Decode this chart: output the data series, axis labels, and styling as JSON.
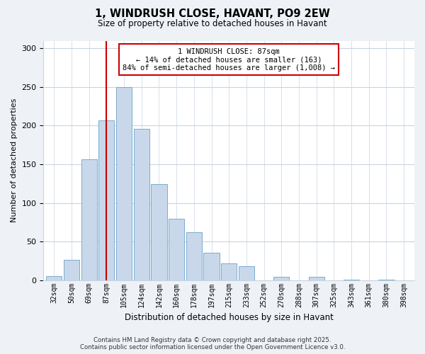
{
  "title": "1, WINDRUSH CLOSE, HAVANT, PO9 2EW",
  "subtitle": "Size of property relative to detached houses in Havant",
  "xlabel": "Distribution of detached houses by size in Havant",
  "ylabel": "Number of detached properties",
  "bin_labels": [
    "32sqm",
    "50sqm",
    "69sqm",
    "87sqm",
    "105sqm",
    "124sqm",
    "142sqm",
    "160sqm",
    "178sqm",
    "197sqm",
    "215sqm",
    "233sqm",
    "252sqm",
    "270sqm",
    "288sqm",
    "307sqm",
    "325sqm",
    "343sqm",
    "361sqm",
    "380sqm",
    "398sqm"
  ],
  "bar_heights": [
    5,
    26,
    156,
    207,
    250,
    196,
    124,
    79,
    62,
    35,
    22,
    18,
    0,
    4,
    0,
    4,
    0,
    1,
    0,
    1,
    0
  ],
  "bar_color": "#c8d8ea",
  "bar_edge_color": "#7aacce",
  "vline_x_index": 3,
  "vline_color": "#cc0000",
  "annotation_line1": "1 WINDRUSH CLOSE: 87sqm",
  "annotation_line2": "← 14% of detached houses are smaller (163)",
  "annotation_line3": "84% of semi-detached houses are larger (1,008) →",
  "annotation_box_color": "#ffffff",
  "annotation_box_edge": "#cc0000",
  "ylim": [
    0,
    310
  ],
  "yticks": [
    0,
    50,
    100,
    150,
    200,
    250,
    300
  ],
  "footer_line1": "Contains HM Land Registry data © Crown copyright and database right 2025.",
  "footer_line2": "Contains public sector information licensed under the Open Government Licence v3.0.",
  "bg_color": "#eef2f7",
  "plot_bg_color": "#ffffff",
  "grid_color": "#c8d4e0"
}
